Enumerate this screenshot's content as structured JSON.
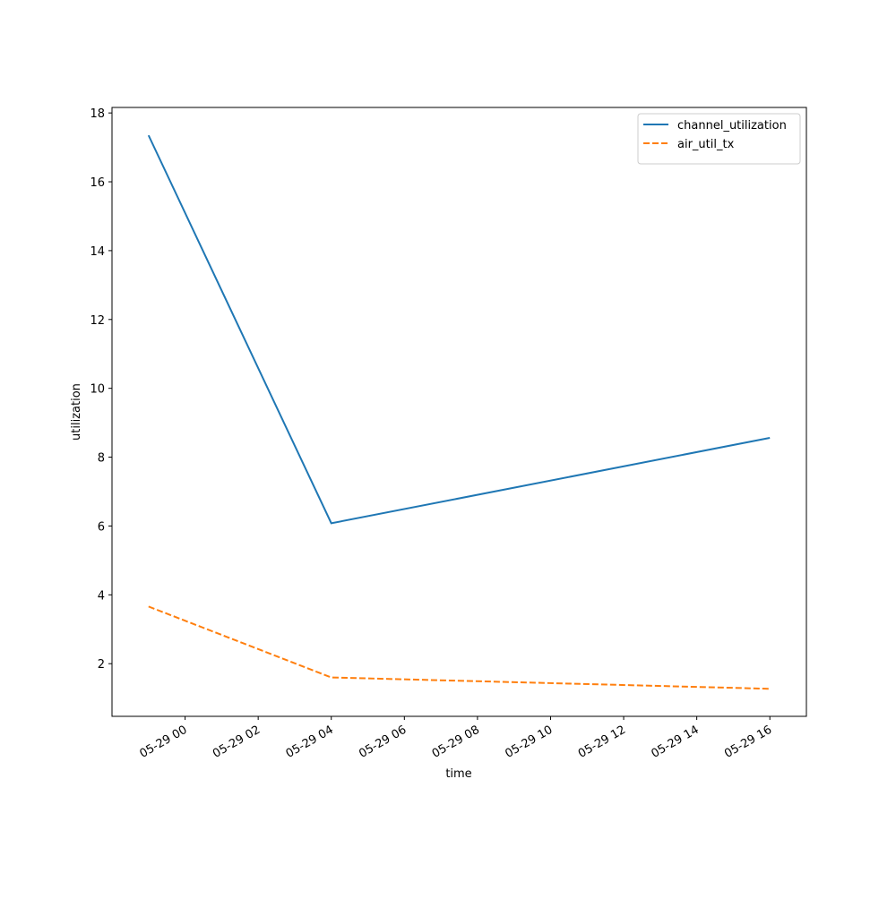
{
  "chart_data": {
    "type": "line",
    "x_label": "time",
    "y_label": "utilization",
    "x": [
      "05-28 23",
      "05-29 04",
      "05-29 16"
    ],
    "series": [
      {
        "name": "channel_utilization",
        "color": "#1f77b4",
        "dash": "solid",
        "values": [
          17.35,
          6.08,
          8.56
        ]
      },
      {
        "name": "air_util_tx",
        "color": "#ff7f0e",
        "dash": "dashed",
        "values": [
          3.66,
          1.6,
          1.27
        ]
      }
    ],
    "xlim": [
      "05-28 22",
      "05-29 17"
    ],
    "xticks": [
      "05-29 00",
      "05-29 02",
      "05-29 04",
      "05-29 06",
      "05-29 08",
      "05-29 10",
      "05-29 12",
      "05-29 14",
      "05-29 16"
    ],
    "ylim": [
      0.47,
      18.16
    ],
    "yticks": [
      2,
      4,
      6,
      8,
      10,
      12,
      14,
      16,
      18
    ],
    "legend": "upper right",
    "grid": false
  }
}
